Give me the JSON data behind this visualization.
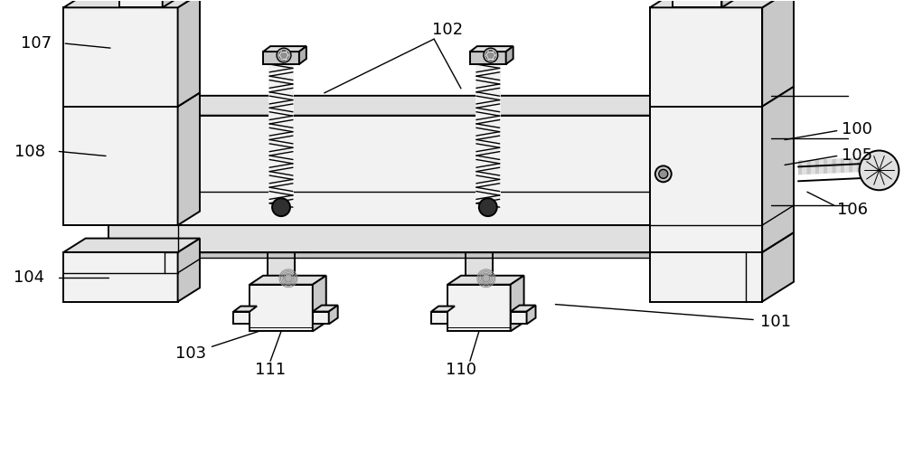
{
  "bg_color": "#ffffff",
  "lc": "#000000",
  "fc_white": "#ffffff",
  "fc_light": "#f2f2f2",
  "fc_mid": "#e0e0e0",
  "fc_dark": "#c8c8c8",
  "fc_darker": "#b0b0b0",
  "fc_shadow": "#909090",
  "fc_black": "#303030",
  "figsize": [
    10.0,
    5.22
  ],
  "dpi": 100
}
